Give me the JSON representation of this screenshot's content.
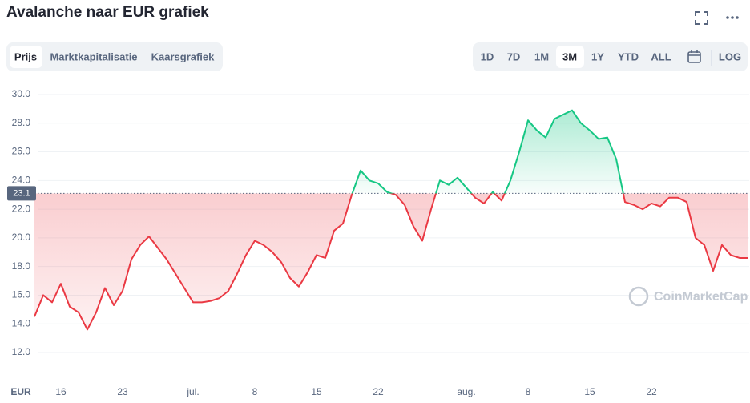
{
  "header": {
    "title": "Avalanche naar EUR grafiek"
  },
  "tabs": [
    "Prijs",
    "Marktkapitalisatie",
    "Kaarsgrafiek"
  ],
  "ranges": [
    "1D",
    "7D",
    "1M",
    "3M",
    "1Y",
    "YTD",
    "ALL"
  ],
  "scale_button": "LOG",
  "chart_data": {
    "type": "line",
    "currency": "EUR",
    "watermark": "CoinMarketCap",
    "categories": [
      null,
      null,
      null,
      "16",
      null,
      null,
      null,
      null,
      null,
      null,
      "23",
      null,
      null,
      null,
      null,
      null,
      null,
      null,
      "jul.",
      null,
      null,
      null,
      null,
      null,
      null,
      "8",
      null,
      null,
      null,
      null,
      null,
      null,
      "15",
      null,
      null,
      null,
      null,
      null,
      null,
      "22",
      null,
      null,
      null,
      null,
      null,
      null,
      null,
      null,
      null,
      "aug.",
      null,
      null,
      null,
      null,
      null,
      null,
      "8",
      null,
      null,
      null,
      null,
      null,
      null,
      "15",
      null,
      null,
      null,
      null,
      null,
      null,
      "22",
      null,
      null,
      null,
      null,
      null,
      null,
      null,
      null,
      null,
      null,
      null
    ],
    "values": [
      14.5,
      16.0,
      15.5,
      16.8,
      15.2,
      14.8,
      13.6,
      14.8,
      16.5,
      15.3,
      16.3,
      18.5,
      19.5,
      20.1,
      19.3,
      18.5,
      17.5,
      16.5,
      15.5,
      15.5,
      15.6,
      15.8,
      16.3,
      17.5,
      18.8,
      19.8,
      19.5,
      19.0,
      18.3,
      17.2,
      16.6,
      17.6,
      18.8,
      18.6,
      20.5,
      21.0,
      23.0,
      24.7,
      24.0,
      23.8,
      23.2,
      23.0,
      22.3,
      20.8,
      19.8,
      22.0,
      24.0,
      23.7,
      24.2,
      23.5,
      22.8,
      22.4,
      23.2,
      22.6,
      24.0,
      26.0,
      28.2,
      27.5,
      27.0,
      28.3,
      28.6,
      28.9,
      28.0,
      27.5,
      26.9,
      27.0,
      25.5,
      22.5,
      22.3,
      22.0,
      22.4,
      22.2,
      22.8,
      22.8,
      22.5,
      20.0,
      19.5,
      17.7,
      19.5,
      18.8,
      18.6,
      18.6
    ],
    "baseline": 23.1,
    "up_color": "#16c784",
    "down_color": "#ea3943",
    "ylim": [
      10,
      31
    ],
    "yticks": [
      {
        "value": 12,
        "label": "12.0"
      },
      {
        "value": 14,
        "label": "14.0"
      },
      {
        "value": 16,
        "label": "16.0"
      },
      {
        "value": 18,
        "label": "18.0"
      },
      {
        "value": 20,
        "label": "20.0"
      },
      {
        "value": 22,
        "label": "22.0"
      },
      {
        "value": 24,
        "label": "24.0"
      },
      {
        "value": 26,
        "label": "26.0"
      },
      {
        "value": 28,
        "label": "28.0"
      },
      {
        "value": 30,
        "label": "30.0"
      }
    ],
    "grid": true
  }
}
